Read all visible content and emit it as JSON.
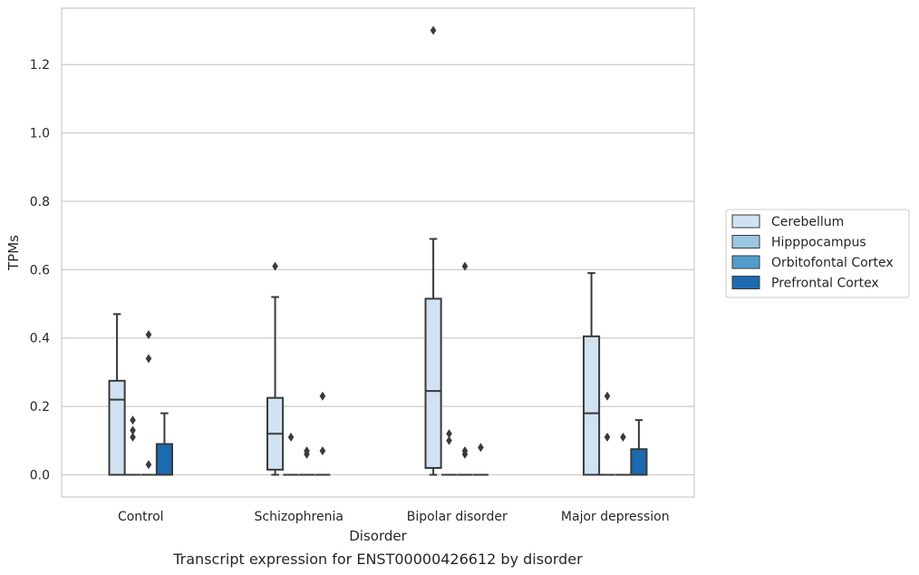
{
  "chart_data": {
    "type": "box",
    "title": "Transcript expression for ENST00000426612 by disorder",
    "xlabel": "Disorder",
    "ylabel": "TPMs",
    "ylim": [
      -0.065,
      1.365
    ],
    "yticks": [
      0.0,
      0.2,
      0.4,
      0.6,
      0.8,
      1.0,
      1.2
    ],
    "ytick_labels": [
      "0.0",
      "0.2",
      "0.4",
      "0.6",
      "0.8",
      "1.0",
      "1.2"
    ],
    "categories": [
      "Control",
      "Schizophrenia",
      "Bipolar disorder",
      "Major depression"
    ],
    "grid": "horizontal",
    "legend_position": "right",
    "series": [
      {
        "name": "Cerebellum",
        "color": "#d1e2f2",
        "boxes": [
          {
            "min": 0.0,
            "q1": 0.0,
            "median": 0.22,
            "q3": 0.275,
            "max": 0.47,
            "outliers": []
          },
          {
            "min": 0.0,
            "q1": 0.015,
            "median": 0.12,
            "q3": 0.225,
            "max": 0.52,
            "outliers": [
              0.61
            ]
          },
          {
            "min": 0.0,
            "q1": 0.02,
            "median": 0.245,
            "q3": 0.515,
            "max": 0.69,
            "outliers": [
              1.3
            ]
          },
          {
            "min": 0.0,
            "q1": 0.0,
            "median": 0.18,
            "q3": 0.405,
            "max": 0.59,
            "outliers": []
          }
        ]
      },
      {
        "name": "Hipppocampus",
        "color": "#9ac8e0",
        "boxes": [
          {
            "min": 0.0,
            "q1": 0.0,
            "median": 0.0,
            "q3": 0.0,
            "max": 0.0,
            "outliers": [
              0.11,
              0.13,
              0.16
            ]
          },
          {
            "min": 0.0,
            "q1": 0.0,
            "median": 0.0,
            "q3": 0.0,
            "max": 0.0,
            "outliers": [
              0.11
            ]
          },
          {
            "min": 0.0,
            "q1": 0.0,
            "median": 0.0,
            "q3": 0.0,
            "max": 0.0,
            "outliers": [
              0.1,
              0.12
            ]
          },
          {
            "min": 0.0,
            "q1": 0.0,
            "median": 0.0,
            "q3": 0.0,
            "max": 0.0,
            "outliers": [
              0.11,
              0.23
            ]
          }
        ]
      },
      {
        "name": "Orbitofontal Cortex",
        "color": "#529dcc",
        "boxes": [
          {
            "min": 0.0,
            "q1": 0.0,
            "median": 0.0,
            "q3": 0.0,
            "max": 0.0,
            "outliers": [
              0.03,
              0.34,
              0.41
            ]
          },
          {
            "min": 0.0,
            "q1": 0.0,
            "median": 0.0,
            "q3": 0.0,
            "max": 0.0,
            "outliers": [
              0.06,
              0.07
            ]
          },
          {
            "min": 0.0,
            "q1": 0.0,
            "median": 0.0,
            "q3": 0.0,
            "max": 0.0,
            "outliers": [
              0.06,
              0.07,
              0.61
            ]
          },
          {
            "min": 0.0,
            "q1": 0.0,
            "median": 0.0,
            "q3": 0.0,
            "max": 0.0,
            "outliers": [
              0.11
            ]
          }
        ]
      },
      {
        "name": "Prefrontal Cortex",
        "color": "#1c6aaf",
        "boxes": [
          {
            "min": 0.0,
            "q1": 0.0,
            "median": 0.0,
            "q3": 0.09,
            "max": 0.18,
            "outliers": []
          },
          {
            "min": 0.0,
            "q1": 0.0,
            "median": 0.0,
            "q3": 0.0,
            "max": 0.0,
            "outliers": [
              0.07,
              0.23
            ]
          },
          {
            "min": 0.0,
            "q1": 0.0,
            "median": 0.0,
            "q3": 0.0,
            "max": 0.0,
            "outliers": [
              0.08
            ]
          },
          {
            "min": 0.0,
            "q1": 0.0,
            "median": 0.0,
            "q3": 0.075,
            "max": 0.16,
            "outliers": []
          }
        ]
      }
    ]
  }
}
